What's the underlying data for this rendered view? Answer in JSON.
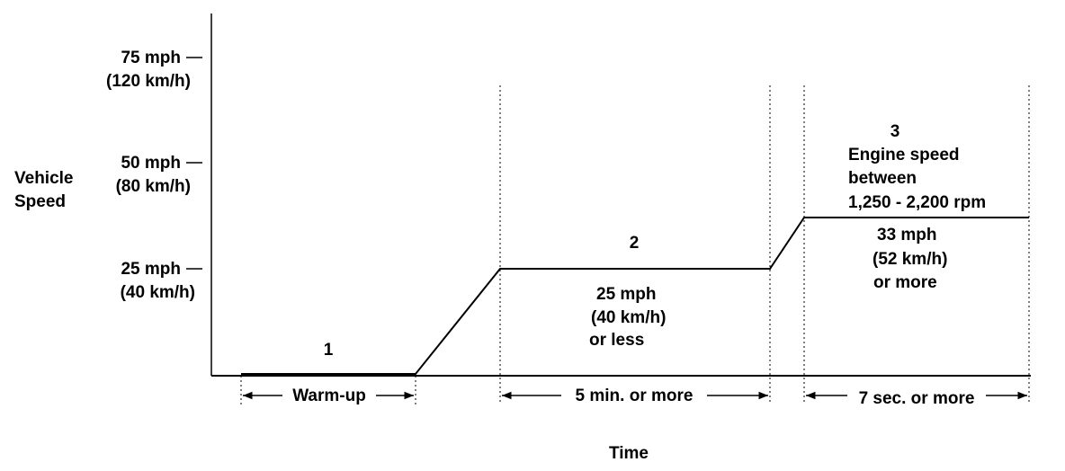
{
  "axis": {
    "y_title_line1": "Vehicle",
    "y_title_line2": "Speed",
    "x_title": "Time",
    "ticks": [
      {
        "mph": "75 mph",
        "kmh": "(120 km/h)"
      },
      {
        "mph": "50 mph",
        "kmh": "(80 km/h)"
      },
      {
        "mph": "25 mph",
        "kmh": "(40 km/h)"
      }
    ]
  },
  "phases": {
    "p1": {
      "number": "1",
      "span_label": "Warm-up"
    },
    "p2": {
      "number": "2",
      "speed_line1": "25 mph",
      "speed_line2": "(40 km/h)",
      "speed_line3": "or less",
      "span_label": "5 min. or more"
    },
    "p3": {
      "number": "3",
      "engine_line1": "Engine speed",
      "engine_line2": "between",
      "engine_line3": "1,250 - 2,200 rpm",
      "speed_line1": "33 mph",
      "speed_line2": "(52 km/h)",
      "speed_line3": "or more",
      "span_label": "7 sec. or more"
    }
  },
  "colors": {
    "ink": "#000000",
    "background": "#ffffff"
  }
}
